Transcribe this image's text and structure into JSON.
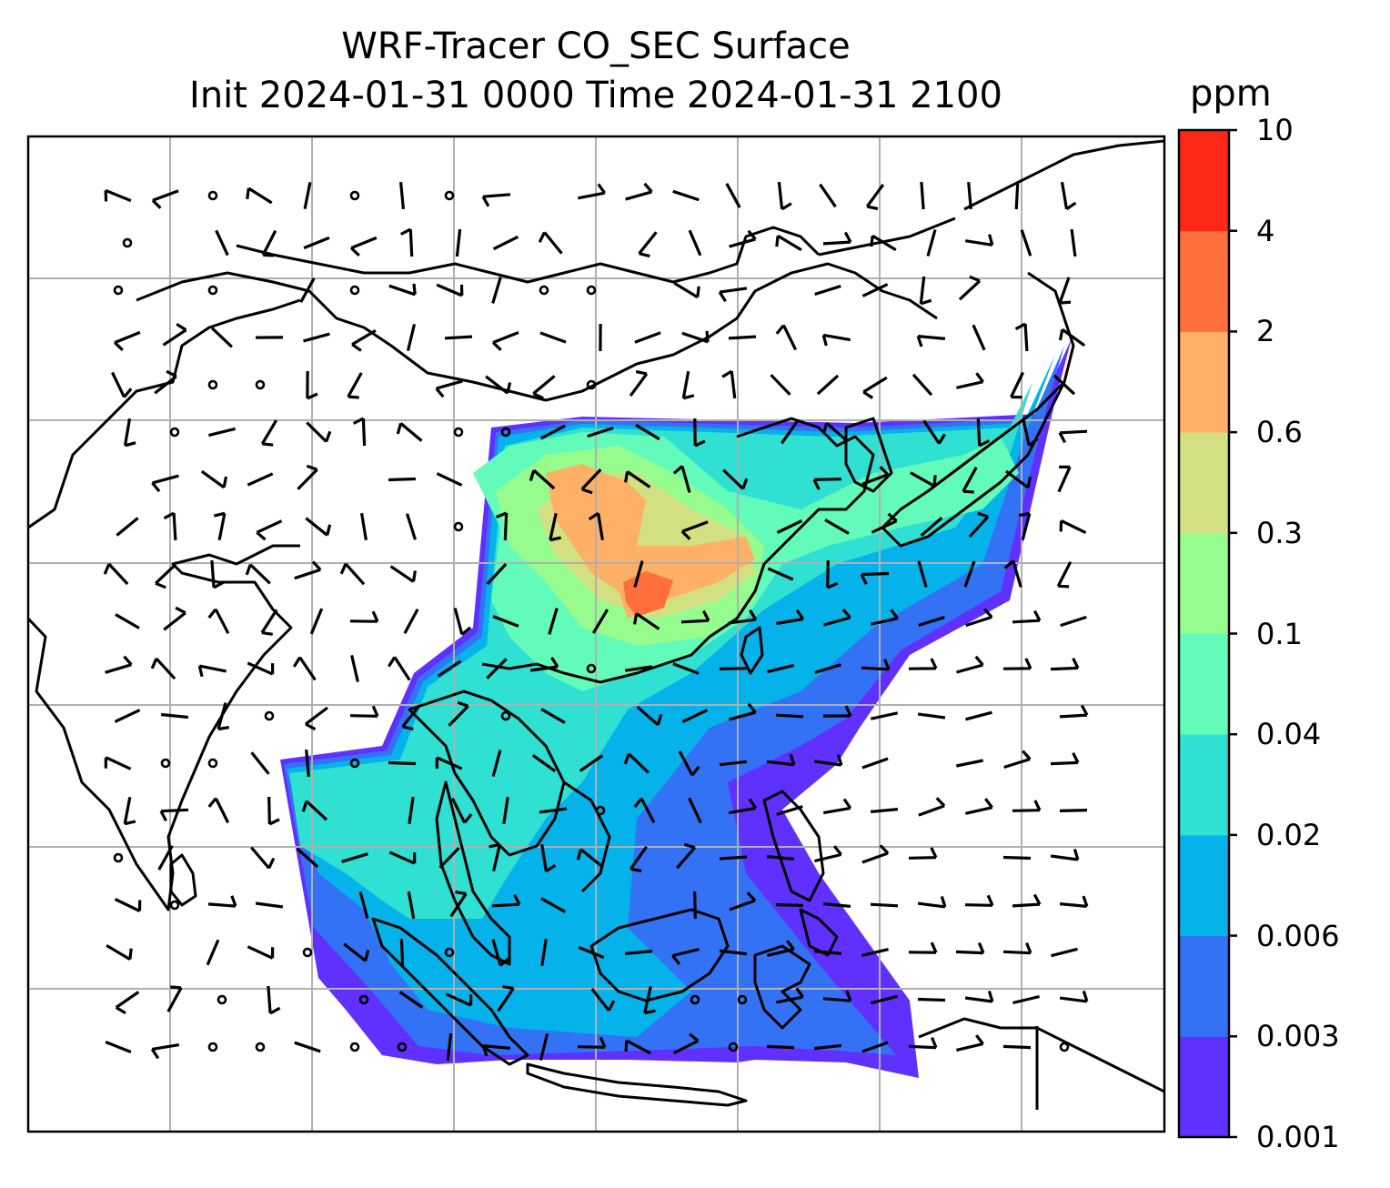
{
  "title": {
    "line1": "WRF-Tracer CO_SEC Surface",
    "line2": "Init 2024-01-31 0000 Time 2024-01-31 2100"
  },
  "colorbar": {
    "unit": "ppm",
    "ticks": [
      "0.001",
      "0.003",
      "0.006",
      "0.02",
      "0.04",
      "0.1",
      "0.3",
      "0.6",
      "2",
      "4",
      "10"
    ],
    "colors": [
      "#6030ff",
      "#3472f5",
      "#06b2ea",
      "#2fe0d3",
      "#63fbb9",
      "#96fc8e",
      "#d2e082",
      "#feb166",
      "#fe6f3c",
      "#ff2818"
    ]
  },
  "map": {
    "gridlines": "on",
    "features": [
      "coastlines",
      "country-borders",
      "wind-barbs",
      "tracer-concentration"
    ]
  }
}
